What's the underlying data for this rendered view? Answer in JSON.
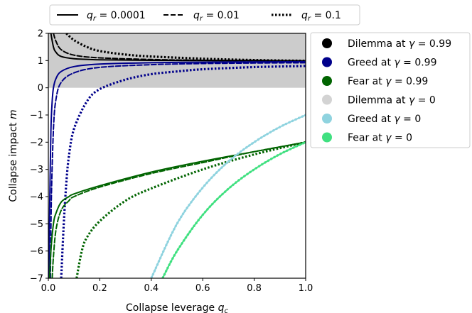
{
  "chart_data": {
    "type": "line",
    "xlabel": "Collapse leverage q_c",
    "ylabel": "Collapse impact m",
    "xlim": [
      0,
      1
    ],
    "ylim": [
      -7,
      2
    ],
    "xticks": [
      "0.0",
      "0.2",
      "0.4",
      "0.6",
      "0.8",
      "1.0"
    ],
    "yticks": [
      "2",
      "1",
      "0",
      "−1",
      "−2",
      "−3",
      "−4",
      "−5",
      "−6",
      "−7"
    ],
    "shaded_region": {
      "y_from": 0,
      "y_to": 2,
      "color": "#cccccc"
    },
    "legend_styles": {
      "placement": "top",
      "entries": [
        {
          "label": "q_r = 0.0001",
          "dash": "solid"
        },
        {
          "label": "q_r = 0.01",
          "dash": "dashed"
        },
        {
          "label": "q_r = 0.1",
          "dash": "dotted"
        }
      ]
    },
    "legend_colors": {
      "placement": "right",
      "entries": [
        {
          "label": "Dilemma at γ = 0.99",
          "color": "#000000"
        },
        {
          "label": "Greed at γ = 0.99",
          "color": "#00008b"
        },
        {
          "label": "Fear at γ = 0.99",
          "color": "#006400"
        },
        {
          "label": "Dilemma at γ = 0",
          "color": "#d3d3d3"
        },
        {
          "label": "Greed at γ = 0",
          "color": "#8fd3df"
        },
        {
          "label": "Fear at γ = 0",
          "color": "#40e080"
        }
      ]
    },
    "series": [
      {
        "group": "Dilemma at γ = 0.99",
        "q_r": 0.0001,
        "dash": "solid",
        "color": "#000000",
        "x": [
          0.01,
          0.02,
          0.03,
          0.05,
          0.1,
          0.2,
          0.4,
          0.6,
          0.8,
          1.0
        ],
        "y": [
          2.0,
          1.5,
          1.3,
          1.15,
          1.07,
          1.03,
          1.01,
          1.0,
          1.0,
          0.99
        ]
      },
      {
        "group": "Dilemma at γ = 0.99",
        "q_r": 0.01,
        "dash": "dashed",
        "color": "#000000",
        "x": [
          0.02,
          0.03,
          0.05,
          0.1,
          0.2,
          0.4,
          0.6,
          0.8,
          1.0
        ],
        "y": [
          2.0,
          1.7,
          1.4,
          1.2,
          1.1,
          1.04,
          1.01,
          1.0,
          0.99
        ]
      },
      {
        "group": "Dilemma at γ = 0.99",
        "q_r": 0.1,
        "dash": "dotted",
        "color": "#000000",
        "x": [
          0.07,
          0.1,
          0.15,
          0.2,
          0.3,
          0.4,
          0.6,
          0.8,
          1.0
        ],
        "y": [
          2.0,
          1.75,
          1.5,
          1.35,
          1.22,
          1.15,
          1.07,
          1.02,
          0.99
        ]
      },
      {
        "group": "Greed at γ = 0.99",
        "q_r": 0.0001,
        "dash": "solid",
        "color": "#00008b",
        "x": [
          0.002,
          0.005,
          0.01,
          0.015,
          0.02,
          0.03,
          0.05,
          0.1,
          0.2,
          0.4,
          0.6,
          0.8,
          1.0
        ],
        "y": [
          -7.0,
          -4.5,
          -1.6,
          -0.5,
          0.0,
          0.35,
          0.6,
          0.78,
          0.87,
          0.92,
          0.94,
          0.95,
          0.96
        ]
      },
      {
        "group": "Greed at γ = 0.99",
        "q_r": 0.01,
        "dash": "dashed",
        "color": "#00008b",
        "x": [
          0.008,
          0.012,
          0.02,
          0.03,
          0.05,
          0.1,
          0.2,
          0.4,
          0.6,
          0.8,
          1.0
        ],
        "y": [
          -7.0,
          -4.0,
          -1.5,
          -0.4,
          0.2,
          0.55,
          0.75,
          0.85,
          0.89,
          0.91,
          0.92
        ]
      },
      {
        "group": "Greed at γ = 0.99",
        "q_r": 0.1,
        "dash": "dotted",
        "color": "#00008b",
        "x": [
          0.05,
          0.06,
          0.07,
          0.08,
          0.1,
          0.15,
          0.2,
          0.3,
          0.4,
          0.5,
          0.6,
          0.8,
          1.0
        ],
        "y": [
          -7.0,
          -5.0,
          -3.5,
          -2.5,
          -1.5,
          -0.5,
          -0.05,
          0.3,
          0.5,
          0.6,
          0.68,
          0.76,
          0.8
        ]
      },
      {
        "group": "Fear at γ = 0.99",
        "q_r": 0.0001,
        "dash": "solid",
        "color": "#006400",
        "x": [
          0.005,
          0.01,
          0.02,
          0.03,
          0.05,
          0.08,
          0.1,
          0.2,
          0.4,
          0.6,
          0.8,
          1.0
        ],
        "y": [
          -7.0,
          -6.0,
          -5.0,
          -4.6,
          -4.2,
          -4.0,
          -3.9,
          -3.6,
          -3.1,
          -2.7,
          -2.35,
          -2.0
        ]
      },
      {
        "group": "Fear at γ = 0.99",
        "q_r": 0.01,
        "dash": "dashed",
        "color": "#006400",
        "x": [
          0.015,
          0.02,
          0.03,
          0.05,
          0.08,
          0.1,
          0.2,
          0.4,
          0.6,
          0.8,
          1.0
        ],
        "y": [
          -7.0,
          -6.2,
          -5.2,
          -4.5,
          -4.15,
          -4.0,
          -3.65,
          -3.15,
          -2.75,
          -2.35,
          -2.0
        ]
      },
      {
        "group": "Fear at γ = 0.99",
        "q_r": 0.1,
        "dash": "dotted",
        "color": "#006400",
        "x": [
          0.11,
          0.13,
          0.15,
          0.2,
          0.3,
          0.4,
          0.6,
          0.8,
          1.0
        ],
        "y": [
          -7.0,
          -6.0,
          -5.5,
          -4.9,
          -4.15,
          -3.7,
          -3.0,
          -2.45,
          -2.0
        ]
      },
      {
        "group": "Greed at γ = 0",
        "q_r": 0.0001,
        "dash": "solid",
        "color": "#8fd3df",
        "x": [
          0.4,
          0.5,
          0.6,
          0.7,
          0.8,
          0.9,
          1.0
        ],
        "y": [
          -7.0,
          -5.0,
          -3.67,
          -2.71,
          -2.0,
          -1.44,
          -1.0
        ]
      },
      {
        "group": "Greed at γ = 0",
        "q_r": 0.01,
        "dash": "dashed",
        "color": "#8fd3df",
        "x": [
          0.4,
          0.5,
          0.6,
          0.7,
          0.8,
          0.9,
          1.0
        ],
        "y": [
          -7.0,
          -5.0,
          -3.67,
          -2.71,
          -2.0,
          -1.44,
          -1.0
        ]
      },
      {
        "group": "Greed at γ = 0",
        "q_r": 0.1,
        "dash": "dotted",
        "color": "#8fd3df",
        "x": [
          0.4,
          0.5,
          0.6,
          0.7,
          0.8,
          0.9,
          1.0
        ],
        "y": [
          -7.0,
          -5.0,
          -3.67,
          -2.71,
          -2.0,
          -1.44,
          -1.0
        ]
      },
      {
        "group": "Fear at γ = 0",
        "q_r": 0.0001,
        "dash": "solid",
        "color": "#40e080",
        "x": [
          0.444,
          0.5,
          0.6,
          0.7,
          0.8,
          0.9,
          1.0
        ],
        "y": [
          -7.0,
          -6.0,
          -4.67,
          -3.71,
          -3.0,
          -2.44,
          -2.0
        ]
      },
      {
        "group": "Fear at γ = 0",
        "q_r": 0.01,
        "dash": "dashed",
        "color": "#40e080",
        "x": [
          0.444,
          0.5,
          0.6,
          0.7,
          0.8,
          0.9,
          1.0
        ],
        "y": [
          -7.0,
          -6.0,
          -4.67,
          -3.71,
          -3.0,
          -2.44,
          -2.0
        ]
      },
      {
        "group": "Fear at γ = 0",
        "q_r": 0.1,
        "dash": "dotted",
        "color": "#40e080",
        "x": [
          0.444,
          0.5,
          0.6,
          0.7,
          0.8,
          0.9,
          1.0
        ],
        "y": [
          -7.0,
          -6.0,
          -4.67,
          -3.71,
          -3.0,
          -2.44,
          -2.0
        ]
      }
    ]
  }
}
